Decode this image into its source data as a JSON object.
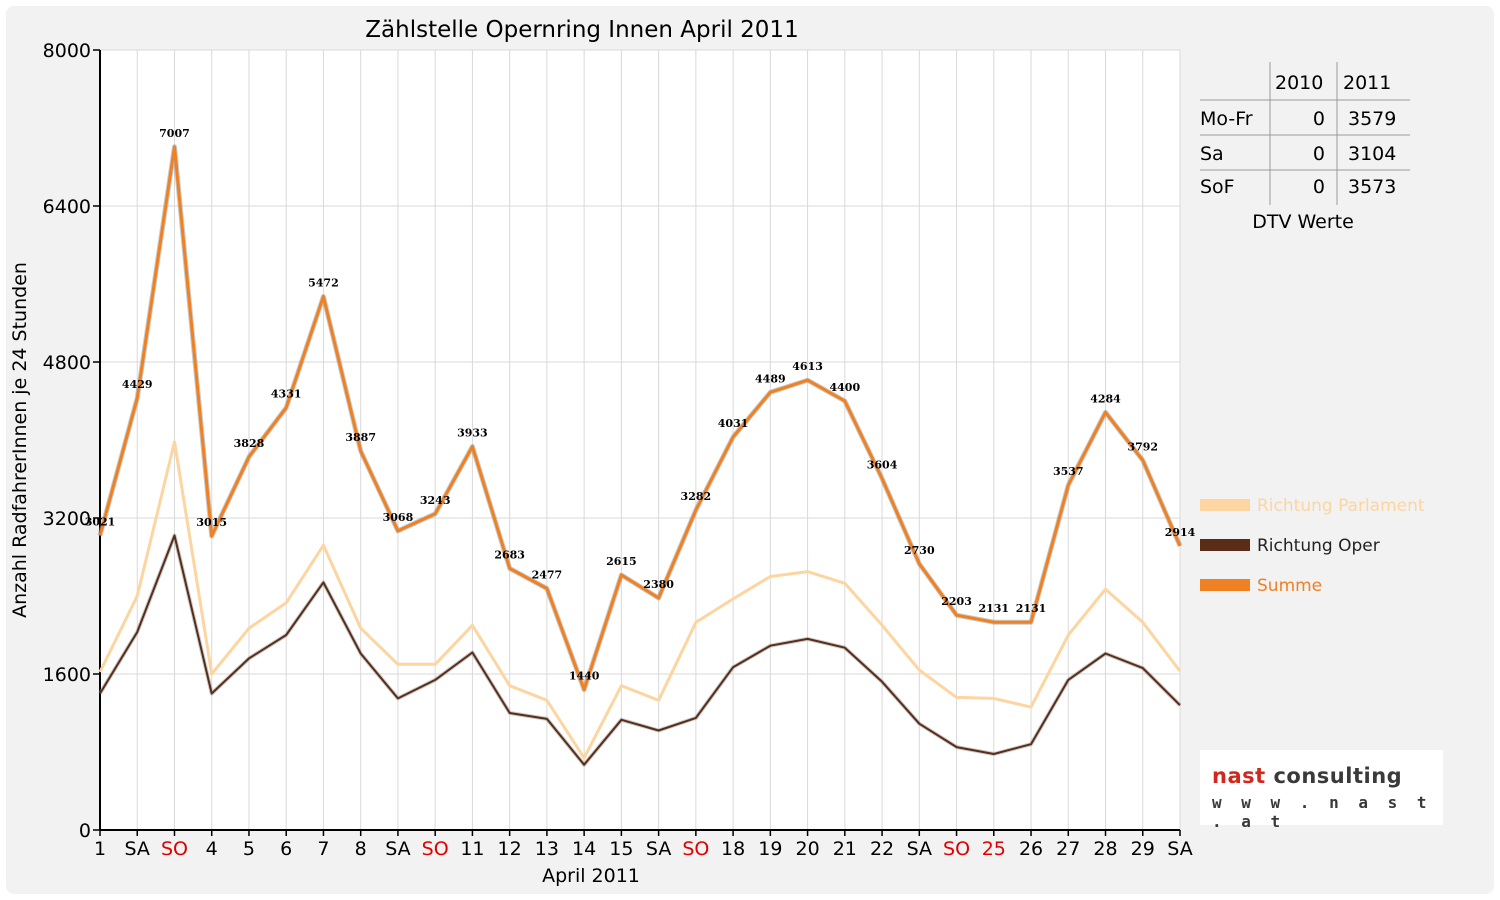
{
  "chart_data": {
    "type": "line",
    "title": "Zählstelle Opernring Innen April 2011",
    "xlabel": "April 2011",
    "ylabel": "Anzahl RadfahrerInnen je 24 Stunden",
    "ylim": [
      0,
      8000
    ],
    "yticks": [
      0,
      1600,
      3200,
      4800,
      6400,
      8000
    ],
    "grid": true,
    "legend_position": "right",
    "categories": [
      "1",
      "SA",
      "SO",
      "4",
      "5",
      "6",
      "7",
      "8",
      "SA",
      "SO",
      "11",
      "12",
      "13",
      "14",
      "15",
      "SA",
      "SO",
      "18",
      "19",
      "20",
      "21",
      "22",
      "SA",
      "SO",
      "25",
      "26",
      "27",
      "28",
      "29",
      "SA"
    ],
    "red_categories": [
      2,
      9,
      16,
      23,
      24
    ],
    "series": [
      {
        "name": "Richtung Parlament",
        "color": "#fcd5a0",
        "values": [
          1620,
          2400,
          3980,
          1600,
          2070,
          2330,
          2920,
          2070,
          1700,
          1700,
          2100,
          1480,
          1330,
          740,
          1480,
          1330,
          2130,
          2370,
          2600,
          2650,
          2530,
          2100,
          1640,
          1360,
          1350,
          1260,
          2000,
          2470,
          2130,
          1630
        ]
      },
      {
        "name": "Richtung Oper",
        "color": "#5a2d18",
        "values": [
          1400,
          2030,
          3020,
          1400,
          1760,
          2000,
          2540,
          1810,
          1350,
          1540,
          1820,
          1200,
          1140,
          670,
          1130,
          1020,
          1150,
          1670,
          1890,
          1960,
          1870,
          1520,
          1090,
          850,
          780,
          880,
          1540,
          1810,
          1660,
          1280
        ]
      },
      {
        "name": "Summe",
        "color": "#f08122",
        "values": [
          3021,
          4429,
          7007,
          3015,
          3828,
          4331,
          5472,
          3887,
          3068,
          3243,
          3933,
          2683,
          2477,
          1440,
          2615,
          2380,
          3282,
          4031,
          4489,
          4613,
          4400,
          3604,
          2730,
          2203,
          2131,
          2131,
          3537,
          4284,
          3792,
          2914
        ]
      }
    ]
  },
  "dtv_table": {
    "headers": [
      "",
      "2010",
      "2011"
    ],
    "rows": [
      [
        "Mo-Fr",
        "0",
        "3579"
      ],
      [
        "Sa",
        "0",
        "3104"
      ],
      [
        "SoF",
        "0",
        "3573"
      ]
    ],
    "caption": "DTV Werte"
  },
  "logo": {
    "part1": "nast",
    "part2": " consulting",
    "url": "w w w . n a s t . a t"
  }
}
